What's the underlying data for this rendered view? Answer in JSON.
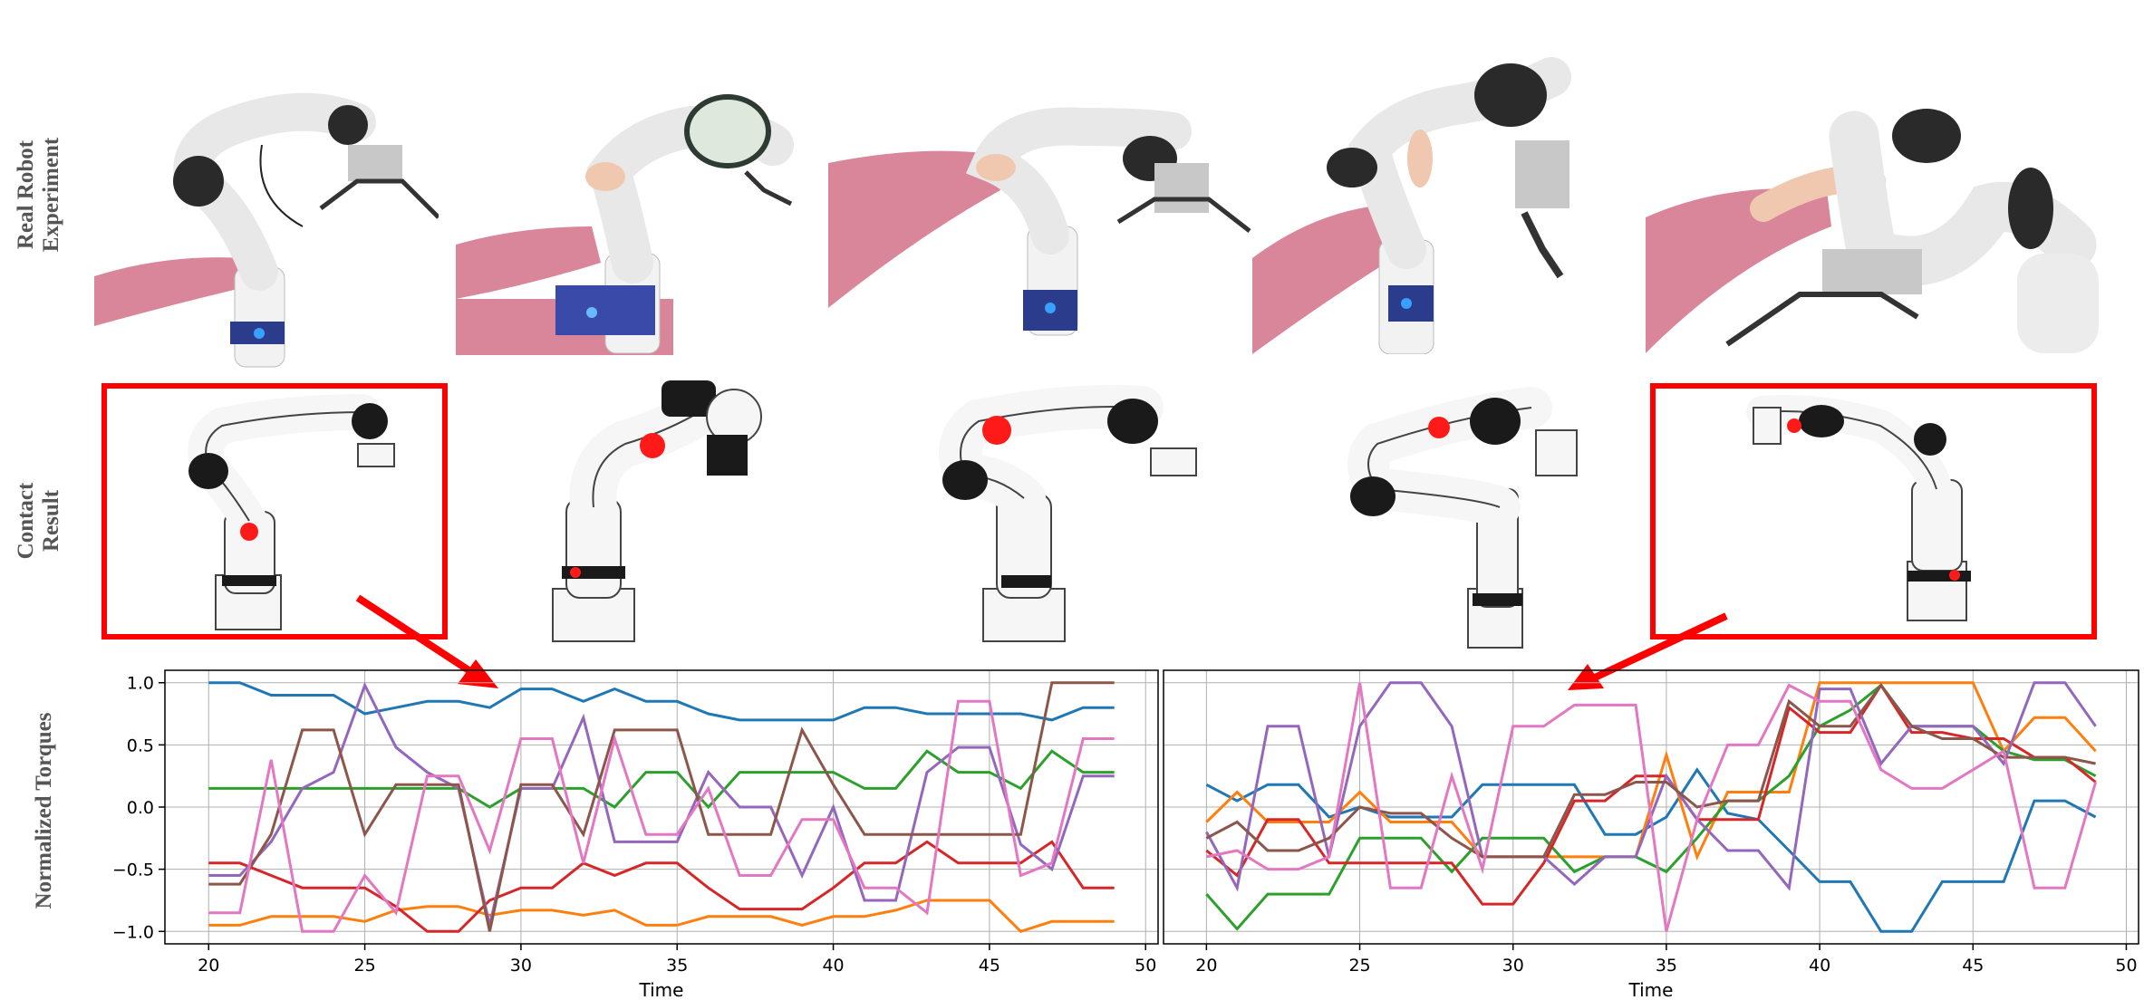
{
  "row_labels": {
    "real": [
      "Real Robot",
      "Experiment"
    ],
    "contact": [
      "Contact",
      "Result"
    ],
    "torques": "Normalized Torques"
  },
  "colors": {
    "highlight": "#ff0000",
    "arm": "#f2f2f2",
    "arm_dark": "#2a2a2a",
    "sleeve": "#d9869b",
    "contact": "#ff1a1a"
  },
  "chart_data": [
    {
      "type": "line",
      "xlabel": "Time",
      "ylabel": "Normalized Torques",
      "xlim": [
        18.6,
        50.4
      ],
      "ylim": [
        -1.1,
        1.1
      ],
      "xticks": [
        20,
        25,
        30,
        35,
        40,
        45,
        50
      ],
      "yticks": [
        -1.0,
        -0.5,
        0.0,
        0.5,
        1.0
      ],
      "ytick_labels": [
        "−1.0",
        "−0.5",
        "0.0",
        "0.5",
        "1.0"
      ],
      "grid": true,
      "x": [
        20,
        21,
        22,
        23,
        24,
        25,
        26,
        27,
        28,
        29,
        30,
        31,
        32,
        33,
        34,
        35,
        36,
        37,
        38,
        39,
        40,
        41,
        42,
        43,
        44,
        45,
        46,
        47,
        48,
        49
      ],
      "series": [
        {
          "color": "#1f77b4",
          "values": [
            1.0,
            1.0,
            0.9,
            0.9,
            0.9,
            0.75,
            0.8,
            0.85,
            0.85,
            0.8,
            0.95,
            0.95,
            0.85,
            0.95,
            0.85,
            0.85,
            0.75,
            0.7,
            0.7,
            0.7,
            0.7,
            0.8,
            0.8,
            0.75,
            0.75,
            0.75,
            0.75,
            0.7,
            0.8,
            0.8
          ]
        },
        {
          "color": "#ff7f0e",
          "values": [
            -0.95,
            -0.95,
            -0.88,
            -0.88,
            -0.88,
            -0.92,
            -0.83,
            -0.8,
            -0.8,
            -0.87,
            -0.83,
            -0.83,
            -0.87,
            -0.83,
            -0.95,
            -0.95,
            -0.88,
            -0.88,
            -0.88,
            -0.95,
            -0.88,
            -0.88,
            -0.83,
            -0.75,
            -0.75,
            -0.75,
            -1.0,
            -0.92,
            -0.92,
            -0.92
          ]
        },
        {
          "color": "#2ca02c",
          "values": [
            0.15,
            0.15,
            0.15,
            0.15,
            0.15,
            0.15,
            0.15,
            0.15,
            0.15,
            0.0,
            0.15,
            0.15,
            0.15,
            0.0,
            0.28,
            0.28,
            0.0,
            0.28,
            0.28,
            0.28,
            0.28,
            0.15,
            0.15,
            0.45,
            0.28,
            0.28,
            0.15,
            0.45,
            0.28,
            0.28
          ]
        },
        {
          "color": "#d62728",
          "values": [
            -0.45,
            -0.45,
            -0.55,
            -0.65,
            -0.65,
            -0.65,
            -0.8,
            -1.0,
            -1.0,
            -0.75,
            -0.65,
            -0.65,
            -0.45,
            -0.55,
            -0.45,
            -0.45,
            -0.65,
            -0.82,
            -0.82,
            -0.82,
            -0.65,
            -0.45,
            -0.45,
            -0.28,
            -0.45,
            -0.45,
            -0.45,
            -0.28,
            -0.65,
            -0.65
          ]
        },
        {
          "color": "#9467bd",
          "values": [
            -0.55,
            -0.55,
            -0.28,
            0.15,
            0.28,
            0.98,
            0.48,
            0.28,
            0.15,
            -0.95,
            0.15,
            0.15,
            0.72,
            -0.28,
            -0.28,
            -0.28,
            0.28,
            0.0,
            0.0,
            -0.55,
            0.0,
            -0.75,
            -0.75,
            0.28,
            0.48,
            0.48,
            -0.3,
            -0.5,
            0.25,
            0.25
          ]
        },
        {
          "color": "#8c564b",
          "values": [
            -0.62,
            -0.62,
            -0.22,
            0.62,
            0.62,
            -0.22,
            0.18,
            0.18,
            0.18,
            -1.0,
            0.18,
            0.18,
            -0.22,
            0.62,
            0.62,
            0.62,
            -0.22,
            -0.22,
            -0.22,
            0.62,
            0.18,
            -0.22,
            -0.22,
            -0.22,
            -0.22,
            -0.22,
            -0.22,
            1.0,
            1.0,
            1.0
          ]
        },
        {
          "color": "#e377c2",
          "values": [
            -0.85,
            -0.85,
            0.38,
            -1.0,
            -1.0,
            -0.55,
            -0.85,
            0.25,
            0.25,
            -0.35,
            0.55,
            0.55,
            -0.45,
            0.55,
            -0.22,
            -0.22,
            0.15,
            -0.55,
            -0.55,
            -0.1,
            -0.1,
            -0.65,
            -0.65,
            -0.85,
            0.85,
            0.85,
            -0.55,
            -0.45,
            0.55,
            0.55
          ]
        }
      ]
    },
    {
      "type": "line",
      "xlabel": "Time",
      "xlim": [
        18.6,
        50.4
      ],
      "ylim": [
        -1.1,
        1.1
      ],
      "xticks": [
        20,
        25,
        30,
        35,
        40,
        45,
        50
      ],
      "grid": true,
      "x": [
        20,
        21,
        22,
        23,
        24,
        25,
        26,
        27,
        28,
        29,
        30,
        31,
        32,
        33,
        34,
        35,
        36,
        37,
        38,
        39,
        40,
        41,
        42,
        43,
        44,
        45,
        46,
        47,
        48,
        49
      ],
      "series": [
        {
          "color": "#1f77b4",
          "values": [
            0.18,
            0.05,
            0.18,
            0.18,
            -0.08,
            0.0,
            -0.08,
            -0.08,
            -0.08,
            0.18,
            0.18,
            0.18,
            0.18,
            -0.22,
            -0.22,
            -0.08,
            0.3,
            -0.05,
            -0.1,
            -0.35,
            -0.6,
            -0.6,
            -1.0,
            -1.0,
            -0.6,
            -0.6,
            -0.6,
            0.05,
            0.05,
            -0.08
          ]
        },
        {
          "color": "#ff7f0e",
          "values": [
            -0.12,
            0.12,
            -0.12,
            -0.12,
            -0.12,
            0.12,
            -0.12,
            -0.12,
            -0.12,
            -0.4,
            -0.4,
            -0.4,
            -0.4,
            -0.4,
            -0.4,
            0.42,
            -0.4,
            0.12,
            0.12,
            0.12,
            1.0,
            1.0,
            1.0,
            1.0,
            1.0,
            1.0,
            0.45,
            0.72,
            0.72,
            0.45
          ]
        },
        {
          "color": "#2ca02c",
          "values": [
            -0.7,
            -0.98,
            -0.7,
            -0.7,
            -0.7,
            -0.25,
            -0.25,
            -0.25,
            -0.52,
            -0.25,
            -0.25,
            -0.25,
            -0.52,
            -0.4,
            -0.4,
            -0.52,
            -0.25,
            0.05,
            0.05,
            0.25,
            0.65,
            0.78,
            0.98,
            0.65,
            0.65,
            0.65,
            0.45,
            0.38,
            0.38,
            0.25
          ]
        },
        {
          "color": "#d62728",
          "values": [
            -0.35,
            -0.55,
            -0.1,
            -0.1,
            -0.45,
            -0.45,
            -0.45,
            -0.45,
            -0.45,
            -0.78,
            -0.78,
            -0.45,
            0.05,
            0.05,
            0.25,
            0.25,
            -0.1,
            -0.1,
            -0.1,
            0.8,
            0.6,
            0.6,
            0.98,
            0.6,
            0.6,
            0.55,
            0.55,
            0.4,
            0.4,
            0.2
          ]
        },
        {
          "color": "#9467bd",
          "values": [
            -0.2,
            -0.65,
            0.65,
            0.65,
            -0.4,
            0.65,
            1.0,
            1.0,
            0.65,
            -0.4,
            -0.4,
            -0.4,
            -0.62,
            -0.4,
            -0.4,
            0.25,
            -0.1,
            -0.35,
            -0.35,
            -0.65,
            0.95,
            0.95,
            0.35,
            0.65,
            0.65,
            0.65,
            0.35,
            1.0,
            1.0,
            0.65
          ]
        },
        {
          "color": "#8c564b",
          "values": [
            -0.25,
            -0.12,
            -0.35,
            -0.35,
            -0.25,
            0.0,
            -0.05,
            -0.05,
            -0.25,
            -0.4,
            -0.4,
            -0.4,
            0.1,
            0.1,
            0.2,
            0.2,
            0.0,
            0.05,
            0.05,
            0.85,
            0.65,
            0.65,
            0.98,
            0.65,
            0.55,
            0.55,
            0.4,
            0.4,
            0.4,
            0.35
          ]
        },
        {
          "color": "#e377c2",
          "values": [
            -0.4,
            -0.35,
            -0.5,
            -0.5,
            -0.4,
            1.0,
            -0.65,
            -0.65,
            0.25,
            -0.5,
            0.65,
            0.65,
            0.82,
            0.82,
            0.82,
            -1.0,
            -0.1,
            0.5,
            0.5,
            0.98,
            0.85,
            0.85,
            0.3,
            0.15,
            0.15,
            0.3,
            0.45,
            -0.65,
            -0.65,
            0.2
          ]
        }
      ]
    }
  ]
}
